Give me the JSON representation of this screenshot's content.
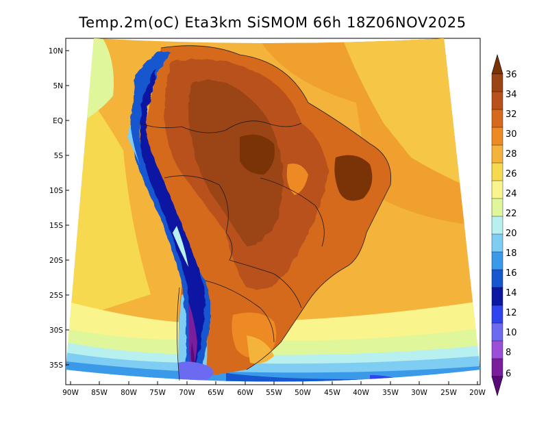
{
  "title": "Temp.2m(oC) Eta3km SiSMOM 66h 18Z06NOV2025",
  "lat_labels": [
    "10N",
    "5N",
    "EQ",
    "5S",
    "10S",
    "15S",
    "20S",
    "25S",
    "30S",
    "35S"
  ],
  "lon_labels": [
    "90W",
    "85W",
    "80W",
    "75W",
    "70W",
    "65W",
    "60W",
    "55W",
    "50W",
    "45W",
    "40W",
    "35W",
    "30W",
    "25W",
    "20W"
  ],
  "colorbar": {
    "labels": [
      "36",
      "34",
      "32",
      "30",
      "28",
      "26",
      "24",
      "22",
      "20",
      "18",
      "16",
      "14",
      "12",
      "10",
      "8",
      "6"
    ],
    "colors": [
      "#7a3306",
      "#9b4416",
      "#b8511c",
      "#d56a1c",
      "#ee8a24",
      "#f4b33a",
      "#f6d94f",
      "#f9f58c",
      "#dff79a",
      "#b7f0ee",
      "#7fcdf3",
      "#3b99ea",
      "#1656cf",
      "#0d18a2",
      "#2e44ee",
      "#6b6af1",
      "#9b4fd8",
      "#7a1e9c",
      "#5a0b7a"
    ]
  }
}
